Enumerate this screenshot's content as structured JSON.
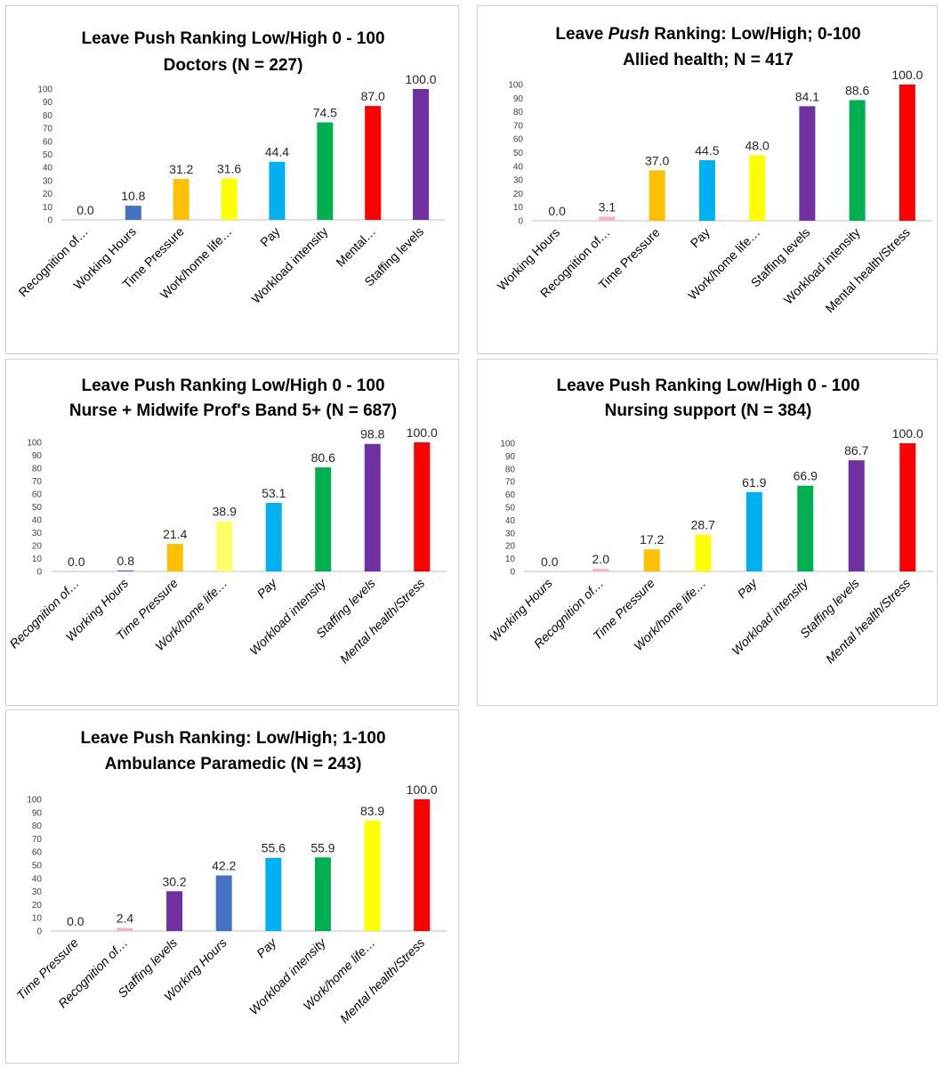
{
  "chart_data": [
    {
      "type": "bar",
      "title": "Leave Push Ranking Low/High 0 - 100",
      "subtitle": "Doctors (N = 227)",
      "categories": [
        "Recognition of…",
        "Working Hours",
        "Time Pressure",
        "Work/home life…",
        "Pay",
        "Workload intensity",
        "Mental…",
        "Staffing levels"
      ],
      "values": [
        0.0,
        10.8,
        31.2,
        31.6,
        44.4,
        74.5,
        87.0,
        100.0
      ],
      "colors": [
        "#F4B6C2",
        "#4472C4",
        "#FFC000",
        "#FFFF00",
        "#00B0F0",
        "#00B050",
        "#FF0000",
        "#7030A0"
      ],
      "ylim": [
        0,
        100
      ],
      "yticks": [
        0,
        10,
        20,
        30,
        40,
        50,
        60,
        70,
        80,
        90,
        100
      ],
      "italic_labels": false,
      "grid": false
    },
    {
      "type": "bar",
      "title_parts": [
        "Leave ",
        "Push",
        " Ranking: Low/High;  0-100"
      ],
      "subtitle": "Allied health;  N = 417",
      "categories": [
        "Working Hours",
        "Recognition of…",
        "Time Pressure",
        "Pay",
        "Work/home life…",
        "Staffing levels",
        "Workload intensity",
        "Mental health/Stress"
      ],
      "values": [
        0.0,
        3.1,
        37.0,
        44.5,
        48.0,
        84.1,
        88.6,
        100.0
      ],
      "colors": [
        "#4472C4",
        "#F4B6C2",
        "#FFC000",
        "#00B0F0",
        "#FFFF00",
        "#7030A0",
        "#00B050",
        "#FF0000"
      ],
      "ylim": [
        0,
        100
      ],
      "yticks": [
        0,
        10,
        20,
        30,
        40,
        50,
        60,
        70,
        80,
        90,
        100
      ],
      "italic_labels": false,
      "grid": false
    },
    {
      "type": "bar",
      "title": "Leave Push Ranking Low/High 0 - 100",
      "subtitle": "Nurse + Midwife Prof's Band 5+ (N = 687)",
      "categories": [
        "Recognition of…",
        "Working Hours",
        "Time Pressure",
        "Work/home life…",
        "Pay",
        "Workload intensity",
        "Staffing levels",
        "Mental health/Stress"
      ],
      "values": [
        0.0,
        0.8,
        21.4,
        38.9,
        53.1,
        80.6,
        98.8,
        100.0
      ],
      "colors": [
        "#F4B6C2",
        "#4472C4",
        "#FFC000",
        "#FFFF66",
        "#00B0F0",
        "#00B050",
        "#7030A0",
        "#FF0000"
      ],
      "ylim": [
        0,
        100
      ],
      "yticks": [
        0,
        10,
        20,
        30,
        40,
        50,
        60,
        70,
        80,
        90,
        100
      ],
      "italic_labels": true,
      "grid": false
    },
    {
      "type": "bar",
      "title": "Leave Push Ranking Low/High 0 - 100",
      "subtitle": "Nursing support (N = 384)",
      "categories": [
        "Working Hours",
        "Recognition of…",
        "Time Pressure",
        "Work/home life…",
        "Pay",
        "Workload intensity",
        "Staffing levels",
        "Mental health/Stress"
      ],
      "values": [
        0.0,
        2.0,
        17.2,
        28.7,
        61.9,
        66.9,
        86.7,
        100.0
      ],
      "colors": [
        "#4472C4",
        "#F4B6C2",
        "#FFC000",
        "#FFFF00",
        "#00B0F0",
        "#00B050",
        "#7030A0",
        "#FF0000"
      ],
      "ylim": [
        0,
        100
      ],
      "yticks": [
        0,
        10,
        20,
        30,
        40,
        50,
        60,
        70,
        80,
        90,
        100
      ],
      "italic_labels": true,
      "grid": false
    },
    {
      "type": "bar",
      "title": "Leave Push Ranking: Low/High; 1-100",
      "subtitle": "Ambulance Paramedic (N = 243)",
      "categories": [
        "Time Pressure",
        "Recognition of…",
        "Staffing levels",
        "Working Hours",
        "Pay",
        "Workload intensity",
        "Work/home life…",
        "Mental health/Stress"
      ],
      "values": [
        0.0,
        2.4,
        30.2,
        42.2,
        55.6,
        55.9,
        83.9,
        100.0
      ],
      "colors": [
        "#FFC000",
        "#F4B6C2",
        "#7030A0",
        "#4472C4",
        "#00B0F0",
        "#00B050",
        "#FFFF00",
        "#FF0000"
      ],
      "ylim": [
        0,
        100
      ],
      "yticks": [
        0,
        10,
        20,
        30,
        40,
        50,
        60,
        70,
        80,
        90,
        100
      ],
      "italic_labels": true,
      "grid": false
    }
  ]
}
